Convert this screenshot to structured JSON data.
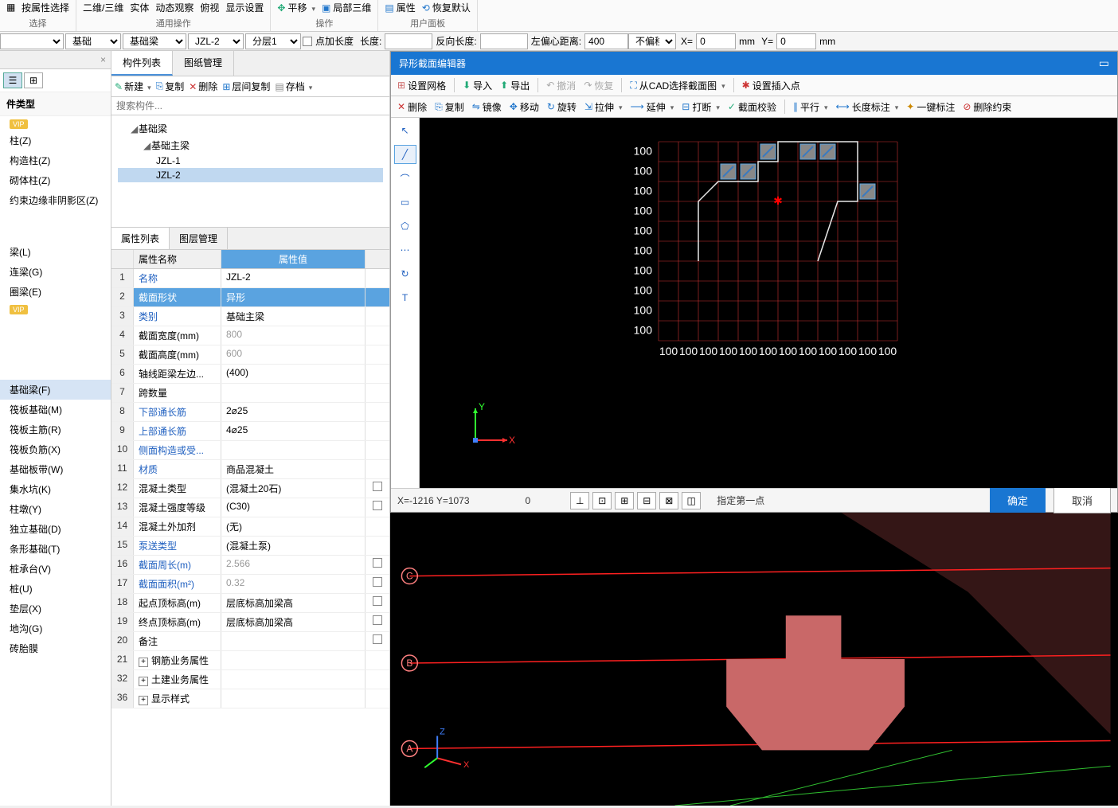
{
  "ribbon": {
    "g0_items": [
      "按属性选择"
    ],
    "g0_label": "选择",
    "g1_items": [
      "二维/三维",
      "实体",
      "动态观察",
      "俯视",
      "显示设置"
    ],
    "g1_label": "通用操作",
    "g2_items": [
      "平移",
      "局部三维"
    ],
    "g2_label": "操作",
    "g3_items": [
      "属性",
      "恢复默认"
    ],
    "g3_label": "用户面板"
  },
  "filter": {
    "s1": "",
    "s2": "基础",
    "s3": "基础梁",
    "s4": "JZL-2",
    "s5": "分层1",
    "chk_label": "点加长度",
    "len_label": "长度:",
    "len_val": "",
    "rev_label": "反向长度:",
    "rev_val": "",
    "ecc_label": "左偏心距离:",
    "ecc_val": "400",
    "offset": "不偏移",
    "x_label": "X=",
    "x_val": "0",
    "mm1": "mm",
    "y_label": "Y=",
    "y_val": "0",
    "mm2": "mm"
  },
  "left": {
    "close": "×",
    "category_title": "件类型",
    "cats_group1_badge": "VIP",
    "cats1": [
      "柱(Z)",
      "构造柱(Z)",
      "砌体柱(Z)",
      "约束边缘非阴影区(Z)"
    ],
    "cats2": [
      "梁(L)",
      "连梁(G)",
      "圈梁(E)"
    ],
    "cats2_badge": "VIP",
    "cats3": [
      "基础梁(F)",
      "筏板基础(M)",
      "筏板主筋(R)",
      "筏板负筋(X)",
      "基础板带(W)",
      "集水坑(K)",
      "柱墩(Y)",
      "独立基础(D)",
      "条形基础(T)",
      "桩承台(V)",
      "桩(U)",
      "垫层(X)",
      "地沟(G)",
      "砖胎膜"
    ],
    "selected_cat": "基础梁(F)"
  },
  "mid": {
    "tab1": "构件列表",
    "tab2": "图纸管理",
    "tools": [
      "新建",
      "复制",
      "删除",
      "层间复制",
      "存档"
    ],
    "search_placeholder": "搜索构件...",
    "tree": {
      "n1": "基础梁",
      "n2": "基础主梁",
      "n3": "JZL-1",
      "n4": "JZL-2"
    },
    "prop_tab1": "属性列表",
    "prop_tab2": "图层管理",
    "prop_head_name": "属性名称",
    "prop_head_val": "属性值",
    "rows": [
      {
        "n": "1",
        "name": "名称",
        "val": "JZL-2",
        "link": true
      },
      {
        "n": "2",
        "name": "截面形状",
        "val": "异形",
        "link": true,
        "hl": true
      },
      {
        "n": "3",
        "name": "类别",
        "val": "基础主梁",
        "link": true
      },
      {
        "n": "4",
        "name": "截面宽度(mm)",
        "val": "800",
        "gray": true
      },
      {
        "n": "5",
        "name": "截面高度(mm)",
        "val": "600",
        "gray": true
      },
      {
        "n": "6",
        "name": "轴线距梁左边...",
        "val": "(400)"
      },
      {
        "n": "7",
        "name": "跨数量",
        "val": ""
      },
      {
        "n": "8",
        "name": "下部通长筋",
        "val": "2⌀25",
        "link": true
      },
      {
        "n": "9",
        "name": "上部通长筋",
        "val": "4⌀25",
        "link": true
      },
      {
        "n": "10",
        "name": "侧面构造或受...",
        "val": "",
        "link": true
      },
      {
        "n": "11",
        "name": "材质",
        "val": "商品混凝土",
        "link": true
      },
      {
        "n": "12",
        "name": "混凝土类型",
        "val": "(混凝土20石)",
        "chk": true
      },
      {
        "n": "13",
        "name": "混凝土强度等级",
        "val": "(C30)",
        "chk": true
      },
      {
        "n": "14",
        "name": "混凝土外加剂",
        "val": "(无)"
      },
      {
        "n": "15",
        "name": "泵送类型",
        "val": "(混凝土泵)",
        "link": true
      },
      {
        "n": "16",
        "name": "截面周长(m)",
        "val": "2.566",
        "link": true,
        "gray": true,
        "chk": true
      },
      {
        "n": "17",
        "name": "截面面积(m²)",
        "val": "0.32",
        "link": true,
        "gray": true,
        "chk": true
      },
      {
        "n": "18",
        "name": "起点顶标高(m)",
        "val": "层底标高加梁高",
        "chk": true
      },
      {
        "n": "19",
        "name": "终点顶标高(m)",
        "val": "层底标高加梁高",
        "chk": true
      },
      {
        "n": "20",
        "name": "备注",
        "val": "",
        "chk": true
      },
      {
        "n": "21",
        "name": "钢筋业务属性",
        "val": "",
        "exp": true
      },
      {
        "n": "32",
        "name": "土建业务属性",
        "val": "",
        "exp": true
      },
      {
        "n": "36",
        "name": "显示样式",
        "val": "",
        "exp": true
      }
    ]
  },
  "editor": {
    "title": "异形截面编辑器",
    "tb1": [
      "设置网格",
      "导入",
      "导出",
      "撤消",
      "恢复",
      "从CAD选择截面图",
      "设置插入点"
    ],
    "tb2": [
      "删除",
      "复制",
      "镜像",
      "移动",
      "旋转",
      "拉伸",
      "延伸",
      "打断",
      "截面校验",
      "平行",
      "长度标注",
      "一键标注",
      "删除约束"
    ],
    "side_tools": [
      "↖",
      "╱",
      "⌒",
      "▭",
      "⬠",
      "⋯",
      "↻",
      "T"
    ],
    "grid": {
      "rows": 10,
      "cols": 12,
      "cell": 25,
      "row_labels": [
        "100",
        "100",
        "100",
        "100",
        "100",
        "100",
        "100",
        "100",
        "100",
        "100"
      ],
      "col_labels": [
        "100",
        "100",
        "100",
        "100",
        "100",
        "100",
        "100",
        "100",
        "100",
        "100",
        "100",
        "100"
      ],
      "grid_color": "#cc3333",
      "shape_color": "#e8e8e8",
      "bg": "#000000",
      "insert_marker_color": "#ff0000"
    },
    "axis": {
      "x": "X",
      "y": "Y",
      "x_color": "#ff3030",
      "y_color": "#30ff30"
    },
    "status": {
      "coord": "X=-1216 Y=1073",
      "zero": "0",
      "prompt": "指定第一点",
      "ok": "确定",
      "cancel": "取消"
    }
  },
  "view3d": {
    "axes": [
      "A",
      "B",
      "C"
    ],
    "line_color": "#ff2020",
    "shape_color": "#c96868",
    "shadow_color": "#4a2020",
    "green": "#30c030",
    "axis_x": "X",
    "axis_z": "Z"
  }
}
